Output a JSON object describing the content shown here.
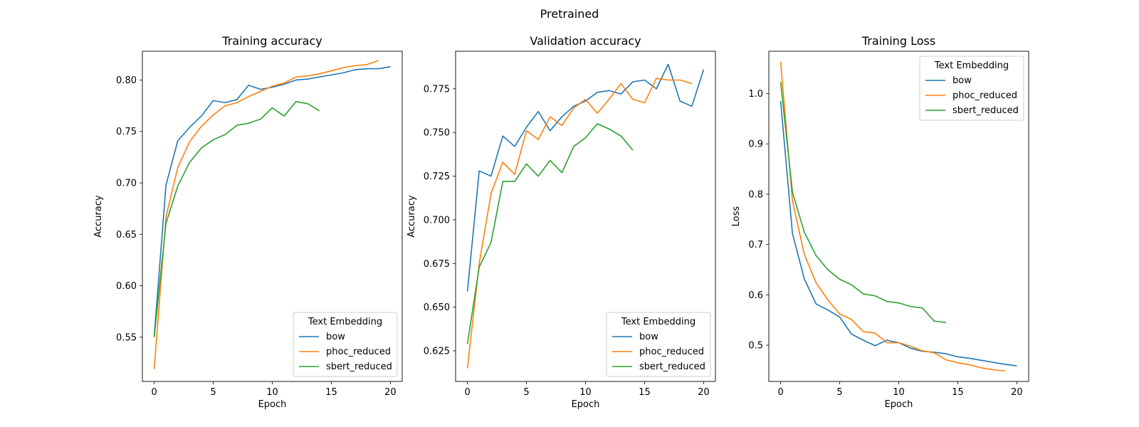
{
  "figure": {
    "suptitle": "Pretrained"
  },
  "chart_data": [
    {
      "type": "line",
      "title": "Training accuracy",
      "xlabel": "Epoch",
      "ylabel": "Accuracy",
      "xlim": [
        -1,
        21
      ],
      "ylim": [
        0.507,
        0.828
      ],
      "xticks": [
        0,
        5,
        10,
        15,
        20
      ],
      "yticks": [
        0.55,
        0.6,
        0.65,
        0.7,
        0.75,
        0.8
      ],
      "yticks_labels": [
        "0.55",
        "0.60",
        "0.65",
        "0.70",
        "0.75",
        "0.80"
      ],
      "legend": {
        "title": "Text Embedding",
        "placement": "lower right"
      },
      "series": [
        {
          "name": "bow",
          "color": "#1f77b4",
          "x": [
            0,
            1,
            2,
            3,
            4,
            5,
            6,
            7,
            8,
            9,
            10,
            11,
            12,
            13,
            14,
            15,
            16,
            17,
            18,
            19,
            20
          ],
          "y": [
            0.551,
            0.698,
            0.741,
            0.754,
            0.765,
            0.78,
            0.778,
            0.781,
            0.795,
            0.791,
            0.793,
            0.796,
            0.8,
            0.801,
            0.803,
            0.805,
            0.807,
            0.81,
            0.811,
            0.811,
            0.813
          ]
        },
        {
          "name": "phoc_reduced",
          "color": "#ff7f0e",
          "x": [
            0,
            1,
            2,
            3,
            4,
            5,
            6,
            7,
            8,
            9,
            10,
            11,
            12,
            13,
            14,
            15,
            16,
            17,
            18,
            19
          ],
          "y": [
            0.519,
            0.667,
            0.715,
            0.74,
            0.755,
            0.766,
            0.775,
            0.778,
            0.784,
            0.789,
            0.794,
            0.797,
            0.803,
            0.804,
            0.806,
            0.809,
            0.812,
            0.814,
            0.815,
            0.819
          ]
        },
        {
          "name": "sbert_reduced",
          "color": "#2ca02c",
          "x": [
            0,
            1,
            2,
            3,
            4,
            5,
            6,
            7,
            8,
            9,
            10,
            11,
            12,
            13,
            14
          ],
          "y": [
            0.55,
            0.661,
            0.697,
            0.72,
            0.734,
            0.742,
            0.747,
            0.756,
            0.758,
            0.762,
            0.773,
            0.765,
            0.779,
            0.777,
            0.77
          ]
        }
      ]
    },
    {
      "type": "line",
      "title": "Validation accuracy",
      "xlabel": "Epoch",
      "ylabel": "Accuracy",
      "xlim": [
        -1,
        21
      ],
      "ylim": [
        0.6075,
        0.7965
      ],
      "xticks": [
        0,
        5,
        10,
        15,
        20
      ],
      "yticks": [
        0.625,
        0.65,
        0.675,
        0.7,
        0.725,
        0.75,
        0.775
      ],
      "yticks_labels": [
        "0.625",
        "0.650",
        "0.675",
        "0.700",
        "0.725",
        "0.750",
        "0.775"
      ],
      "legend": {
        "title": "Text Embedding",
        "placement": "lower right"
      },
      "series": [
        {
          "name": "bow",
          "color": "#1f77b4",
          "x": [
            0,
            1,
            2,
            3,
            4,
            5,
            6,
            7,
            8,
            9,
            10,
            11,
            12,
            13,
            14,
            15,
            16,
            17,
            18,
            19,
            20
          ],
          "y": [
            0.659,
            0.728,
            0.725,
            0.748,
            0.742,
            0.753,
            0.762,
            0.751,
            0.759,
            0.765,
            0.768,
            0.773,
            0.774,
            0.772,
            0.779,
            0.78,
            0.775,
            0.789,
            0.768,
            0.765,
            0.786
          ]
        },
        {
          "name": "phoc_reduced",
          "color": "#ff7f0e",
          "x": [
            0,
            1,
            2,
            3,
            4,
            5,
            6,
            7,
            8,
            9,
            10,
            11,
            12,
            13,
            14,
            15,
            16,
            17,
            18,
            19
          ],
          "y": [
            0.615,
            0.675,
            0.715,
            0.733,
            0.726,
            0.751,
            0.746,
            0.759,
            0.754,
            0.764,
            0.769,
            0.761,
            0.769,
            0.778,
            0.769,
            0.767,
            0.781,
            0.78,
            0.78,
            0.778
          ]
        },
        {
          "name": "sbert_reduced",
          "color": "#2ca02c",
          "x": [
            0,
            1,
            2,
            3,
            4,
            5,
            6,
            7,
            8,
            9,
            10,
            11,
            12,
            13,
            14
          ],
          "y": [
            0.629,
            0.673,
            0.687,
            0.722,
            0.722,
            0.732,
            0.725,
            0.734,
            0.727,
            0.742,
            0.747,
            0.755,
            0.752,
            0.748,
            0.74
          ]
        }
      ]
    },
    {
      "type": "line",
      "title": "Training Loss",
      "xlabel": "Epoch",
      "ylabel": "Loss",
      "xlim": [
        -1,
        21
      ],
      "ylim": [
        0.428,
        1.084
      ],
      "xticks": [
        0,
        5,
        10,
        15,
        20
      ],
      "yticks": [
        0.5,
        0.6,
        0.7,
        0.8,
        0.9,
        1.0
      ],
      "yticks_labels": [
        "0.5",
        "0.6",
        "0.7",
        "0.8",
        "0.9",
        "1.0"
      ],
      "legend": {
        "title": "Text Embedding",
        "placement": "upper right"
      },
      "series": [
        {
          "name": "bow",
          "color": "#1f77b4",
          "x": [
            0,
            1,
            2,
            3,
            4,
            5,
            6,
            7,
            8,
            9,
            10,
            11,
            12,
            13,
            14,
            15,
            16,
            17,
            18,
            19,
            20
          ],
          "y": [
            0.985,
            0.722,
            0.632,
            0.582,
            0.57,
            0.556,
            0.522,
            0.51,
            0.499,
            0.51,
            0.505,
            0.494,
            0.488,
            0.486,
            0.483,
            0.477,
            0.474,
            0.47,
            0.466,
            0.462,
            0.459
          ]
        },
        {
          "name": "phoc_reduced",
          "color": "#ff7f0e",
          "x": [
            0,
            1,
            2,
            3,
            4,
            5,
            6,
            7,
            8,
            9,
            10,
            11,
            12,
            13,
            14,
            15,
            16,
            17,
            18,
            19
          ],
          "y": [
            1.063,
            0.787,
            0.681,
            0.624,
            0.59,
            0.562,
            0.551,
            0.527,
            0.524,
            0.505,
            0.505,
            0.498,
            0.489,
            0.485,
            0.471,
            0.465,
            0.461,
            0.455,
            0.451,
            0.449
          ]
        },
        {
          "name": "sbert_reduced",
          "color": "#2ca02c",
          "x": [
            0,
            1,
            2,
            3,
            4,
            5,
            6,
            7,
            8,
            9,
            10,
            11,
            12,
            13,
            14
          ],
          "y": [
            1.023,
            0.804,
            0.725,
            0.678,
            0.65,
            0.631,
            0.62,
            0.602,
            0.598,
            0.587,
            0.584,
            0.577,
            0.574,
            0.548,
            0.545
          ]
        }
      ]
    }
  ]
}
